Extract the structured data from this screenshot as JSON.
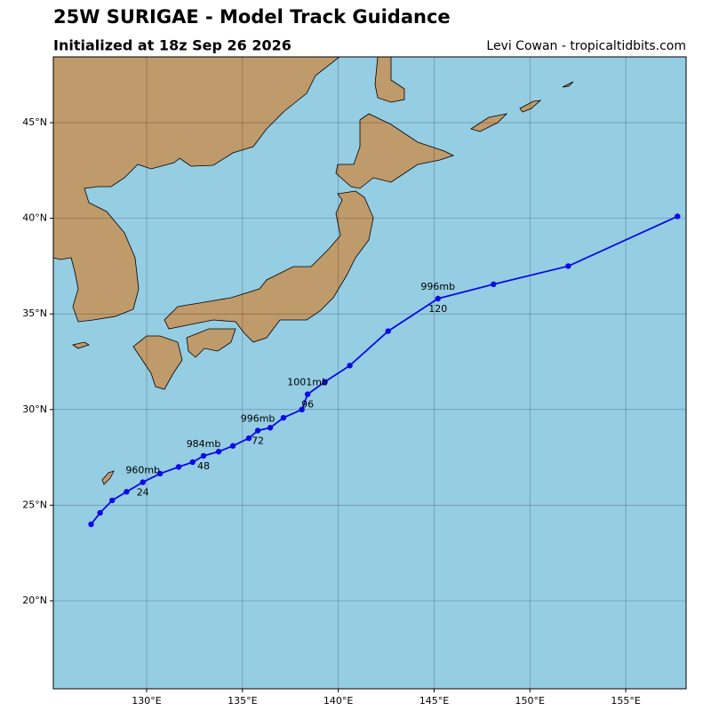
{
  "chart_data": {
    "type": "track",
    "title": "25W SURIGAE - Model Track Guidance",
    "subtitle": "Initialized at 18z Sep 26 2026",
    "credit": "Levi Cowan - tropicaltidbits.com",
    "xlim": [
      125.13,
      158.15
    ],
    "ylim": [
      15.4,
      48.44
    ],
    "xticks": [
      {
        "value": 130,
        "label": "130°E"
      },
      {
        "value": 135,
        "label": "135°E"
      },
      {
        "value": 140,
        "label": "140°E"
      },
      {
        "value": 145,
        "label": "145°E"
      },
      {
        "value": 150,
        "label": "150°E"
      },
      {
        "value": 155,
        "label": "155°E"
      }
    ],
    "yticks": [
      {
        "value": 20,
        "label": "20°N"
      },
      {
        "value": 25,
        "label": "25°N"
      },
      {
        "value": 30,
        "label": "30°N"
      },
      {
        "value": 35,
        "label": "35°N"
      },
      {
        "value": 40,
        "label": "40°N"
      },
      {
        "value": 45,
        "label": "45°N"
      }
    ],
    "grid": true,
    "series": [
      {
        "color": "#0a0ae6",
        "x": [
          127.1,
          127.57,
          128.2,
          128.95,
          129.8,
          130.7,
          131.67,
          132.4,
          132.97,
          133.76,
          134.5,
          135.33,
          135.8,
          136.45,
          137.14,
          138.1,
          138.4,
          139.3,
          140.6,
          142.6,
          145.2,
          148.1,
          152.0,
          157.7
        ],
        "values": [
          24.0,
          24.6,
          25.25,
          25.7,
          26.2,
          26.65,
          27.0,
          27.25,
          27.58,
          27.8,
          28.1,
          28.5,
          28.9,
          29.05,
          29.57,
          30.0,
          30.8,
          31.45,
          32.3,
          34.1,
          35.8,
          36.55,
          37.5,
          40.1
        ],
        "pressure_labels": [
          null,
          null,
          null,
          null,
          "960mb",
          null,
          null,
          null,
          "984mb",
          null,
          null,
          null,
          "996mb",
          null,
          null,
          null,
          "1001mb",
          null,
          null,
          null,
          "996mb",
          null,
          null,
          null
        ],
        "hour_labels": [
          null,
          null,
          null,
          null,
          24,
          null,
          null,
          null,
          48,
          null,
          null,
          null,
          72,
          null,
          null,
          null,
          96,
          null,
          null,
          null,
          120,
          null,
          null,
          null
        ]
      }
    ]
  }
}
